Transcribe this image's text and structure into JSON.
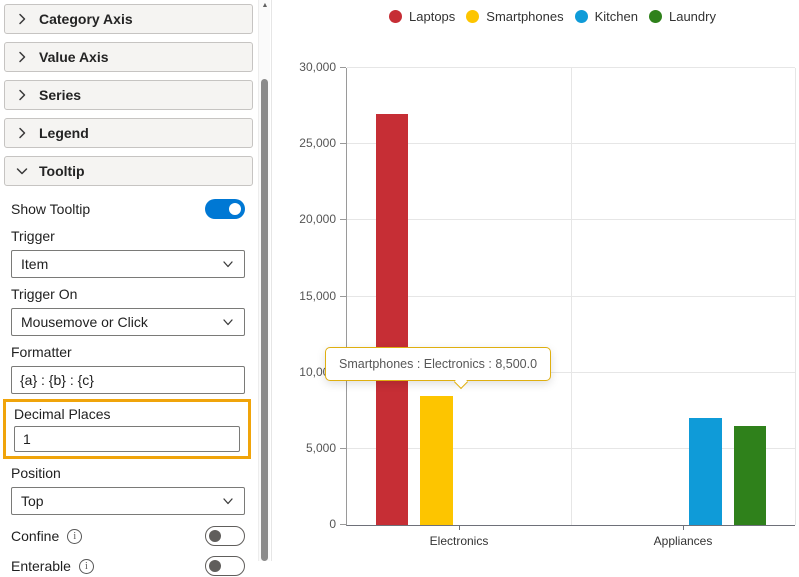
{
  "sidebar": {
    "sections": [
      {
        "label": "Category Axis",
        "expanded": false
      },
      {
        "label": "Value Axis",
        "expanded": false
      },
      {
        "label": "Series",
        "expanded": false
      },
      {
        "label": "Legend",
        "expanded": false
      },
      {
        "label": "Tooltip",
        "expanded": true
      }
    ],
    "tooltip_panel": {
      "show_tooltip": {
        "label": "Show Tooltip",
        "on": true,
        "accent_color": "#0078D4"
      },
      "trigger": {
        "label": "Trigger",
        "value": "Item"
      },
      "trigger_on": {
        "label": "Trigger On",
        "value": "Mousemove or Click"
      },
      "formatter": {
        "label": "Formatter",
        "value": "{a} : {b} : {c}"
      },
      "decimal_places": {
        "label": "Decimal Places",
        "value": "1",
        "highlighted": true,
        "highlight_color": "#F0A40A"
      },
      "position": {
        "label": "Position",
        "value": "Top"
      },
      "confine": {
        "label": "Confine",
        "on": false
      },
      "enterable": {
        "label": "Enterable",
        "on": false
      }
    }
  },
  "icons": {
    "info": "i",
    "scroll_up": "▲"
  },
  "chart_data": {
    "type": "bar",
    "categories": [
      "Electronics",
      "Appliances"
    ],
    "series": [
      {
        "name": "Laptops",
        "color": "#C62E35",
        "values": [
          27000,
          0
        ]
      },
      {
        "name": "Smartphones",
        "color": "#FDC500",
        "values": [
          8500,
          0
        ]
      },
      {
        "name": "Kitchen",
        "color": "#0F9BD8",
        "values": [
          0,
          7000
        ]
      },
      {
        "name": "Laundry",
        "color": "#2F811B",
        "values": [
          0,
          6500
        ]
      }
    ],
    "ylim": [
      0,
      30000
    ],
    "yticks": [
      0,
      5000,
      10000,
      15000,
      20000,
      25000,
      30000
    ],
    "ytick_labels": [
      "0",
      "5,000",
      "10,000",
      "15,000",
      "20,000",
      "25,000",
      "30,000"
    ],
    "grid": true,
    "legend_position": "top",
    "tooltip": {
      "text": "Smartphones : Electronics : 8,500.0",
      "border_color": "#DFAF10"
    }
  }
}
